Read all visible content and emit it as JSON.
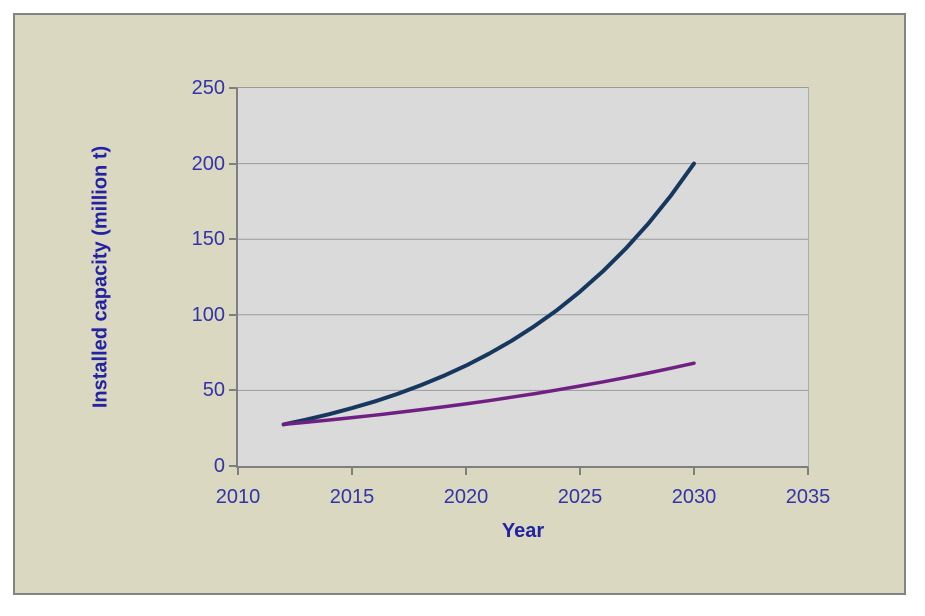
{
  "chart_data": {
    "type": "line",
    "title": "",
    "xlabel": "Year",
    "ylabel": "Installed capacity (million t)",
    "xlim": [
      2010,
      2035
    ],
    "ylim": [
      0,
      250
    ],
    "xticks": [
      2010,
      2015,
      2020,
      2025,
      2030,
      2035
    ],
    "yticks": [
      0,
      50,
      100,
      150,
      200,
      250
    ],
    "grid": "horizontal",
    "legend": "none",
    "x": [
      2012,
      2013,
      2014,
      2015,
      2016,
      2017,
      2018,
      2019,
      2020,
      2021,
      2022,
      2023,
      2024,
      2025,
      2026,
      2027,
      2028,
      2029,
      2030
    ],
    "series": [
      {
        "name": "series-1-dark-blue",
        "color": "#17375E",
        "values": [
          27.5,
          30.7,
          34.3,
          38.3,
          42.7,
          47.7,
          53.3,
          59.5,
          66.4,
          74.2,
          82.8,
          92.5,
          103.2,
          115.3,
          128.7,
          143.7,
          160.4,
          179.1,
          200
        ]
      },
      {
        "name": "series-2-purple",
        "color": "#702082",
        "values": [
          27.5,
          28.9,
          30.4,
          32.0,
          33.6,
          35.4,
          37.2,
          39.1,
          41.1,
          43.2,
          45.5,
          47.8,
          50.3,
          52.9,
          55.6,
          58.5,
          61.5,
          64.7,
          68
        ]
      }
    ]
  },
  "colors": {
    "page_background": "#FFFFFF",
    "chart_background": "#DBD8C2",
    "plot_background": "#DADADA",
    "gridline": "#9A9A9A",
    "axis_line": "#7F7F7F",
    "frame_border": "#838383",
    "tick_label": "#3333A8",
    "axis_title": "#2222A2"
  }
}
